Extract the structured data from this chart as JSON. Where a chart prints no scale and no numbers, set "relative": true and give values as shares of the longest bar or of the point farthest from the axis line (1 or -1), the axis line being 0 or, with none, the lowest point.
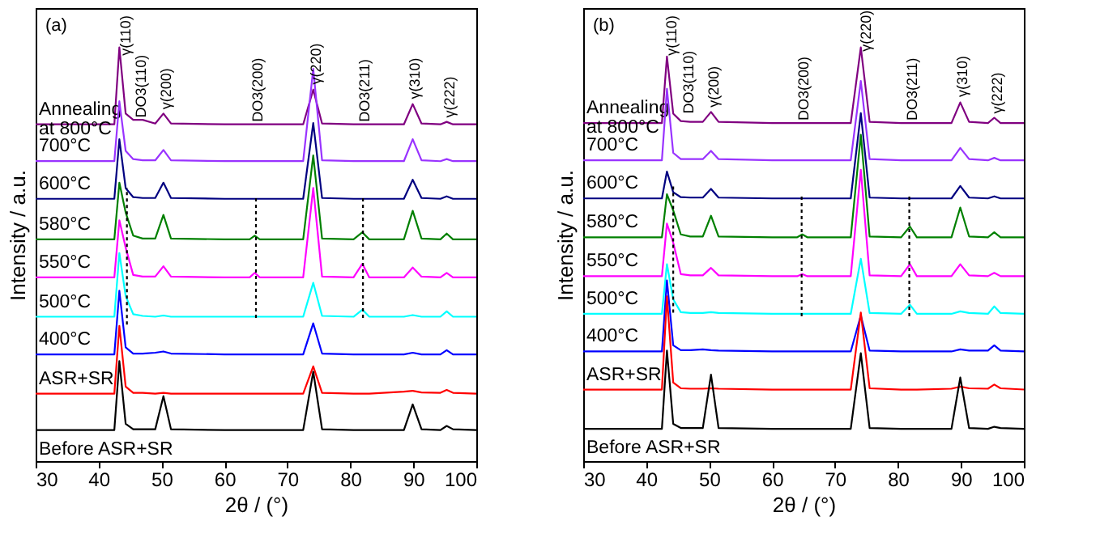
{
  "chart_data": [
    {
      "type": "line",
      "relative": true,
      "xlabel": "2θ / (°)",
      "ylabel": "Intensity / a.u.",
      "xlim": [
        30,
        100
      ],
      "xticks": [
        30,
        40,
        50,
        60,
        70,
        80,
        90,
        100
      ],
      "grid": false,
      "legend": false,
      "tick_labels": "x",
      "marker": "none",
      "x": [
        30,
        42.5,
        43.3,
        44.3,
        45.5,
        47,
        49,
        50.3,
        51.5,
        60,
        64,
        64.8,
        65.6,
        72.5,
        74.1,
        75.5,
        80.5,
        81.9,
        83,
        88.5,
        89.9,
        91.3,
        94.3,
        95.3,
        96.3,
        100
      ],
      "series": [
        {
          "name": "Annealing at 800°C",
          "color": "#800080",
          "line_style": "solid",
          "values": [
            0.814,
            0.814,
            1.0,
            0.84,
            0.825,
            0.825,
            0.816,
            0.84,
            0.816,
            0.814,
            0.814,
            0.814,
            0.814,
            0.814,
            0.898,
            0.816,
            0.814,
            0.814,
            0.814,
            0.814,
            0.863,
            0.816,
            0.814,
            0.82,
            0.814,
            0.814
          ]
        },
        {
          "name": "700°C",
          "color": "#9933ff",
          "line_style": "solid",
          "values": [
            0.725,
            0.725,
            0.87,
            0.75,
            0.73,
            0.727,
            0.727,
            0.752,
            0.727,
            0.725,
            0.725,
            0.725,
            0.725,
            0.725,
            0.948,
            0.727,
            0.725,
            0.725,
            0.725,
            0.725,
            0.778,
            0.727,
            0.725,
            0.73,
            0.725,
            0.725
          ]
        },
        {
          "name": "600°C",
          "color": "#000080",
          "line_style": "solid",
          "values": [
            0.634,
            0.634,
            0.778,
            0.66,
            0.638,
            0.636,
            0.636,
            0.673,
            0.636,
            0.634,
            0.634,
            0.634,
            0.634,
            0.634,
            0.817,
            0.636,
            0.634,
            0.634,
            0.634,
            0.634,
            0.68,
            0.636,
            0.634,
            0.64,
            0.634,
            0.634
          ]
        },
        {
          "name": "580°C",
          "color": "#008000",
          "line_style": "solid",
          "values": [
            0.536,
            0.536,
            0.673,
            0.601,
            0.545,
            0.538,
            0.538,
            0.595,
            0.538,
            0.536,
            0.536,
            0.545,
            0.536,
            0.536,
            0.739,
            0.538,
            0.536,
            0.553,
            0.536,
            0.536,
            0.605,
            0.538,
            0.536,
            0.55,
            0.536,
            0.536
          ]
        },
        {
          "name": "550°C",
          "color": "#ff00ff",
          "line_style": "solid",
          "values": [
            0.444,
            0.444,
            0.582,
            0.516,
            0.45,
            0.446,
            0.446,
            0.471,
            0.446,
            0.444,
            0.444,
            0.455,
            0.444,
            0.444,
            0.66,
            0.446,
            0.444,
            0.477,
            0.444,
            0.444,
            0.468,
            0.446,
            0.444,
            0.455,
            0.444,
            0.444
          ]
        },
        {
          "name": "500°C",
          "color": "#00ffff",
          "line_style": "solid",
          "values": [
            0.349,
            0.349,
            0.503,
            0.399,
            0.355,
            0.351,
            0.349,
            0.352,
            0.349,
            0.349,
            0.349,
            0.349,
            0.349,
            0.349,
            0.431,
            0.351,
            0.349,
            0.366,
            0.349,
            0.349,
            0.353,
            0.349,
            0.349,
            0.362,
            0.349,
            0.349
          ]
        },
        {
          "name": "400°C",
          "color": "#0000ff",
          "line_style": "solid",
          "values": [
            0.258,
            0.258,
            0.412,
            0.275,
            0.26,
            0.26,
            0.262,
            0.265,
            0.26,
            0.258,
            0.258,
            0.258,
            0.258,
            0.258,
            0.333,
            0.26,
            0.258,
            0.258,
            0.258,
            0.258,
            0.262,
            0.258,
            0.258,
            0.268,
            0.258,
            0.258
          ]
        },
        {
          "name": "ASR+SR",
          "color": "#ff0000",
          "line_style": "solid",
          "values": [
            0.163,
            0.163,
            0.327,
            0.18,
            0.165,
            0.165,
            0.163,
            0.165,
            0.163,
            0.163,
            0.163,
            0.163,
            0.163,
            0.163,
            0.229,
            0.165,
            0.163,
            0.163,
            0.163,
            0.168,
            0.17,
            0.166,
            0.165,
            0.172,
            0.165,
            0.163
          ]
        },
        {
          "name": "Before ASR+SR",
          "color": "#000000",
          "line_style": "solid",
          "values": [
            0.075,
            0.075,
            0.242,
            0.09,
            0.077,
            0.077,
            0.077,
            0.157,
            0.077,
            0.075,
            0.075,
            0.075,
            0.075,
            0.075,
            0.216,
            0.077,
            0.075,
            0.075,
            0.075,
            0.075,
            0.137,
            0.077,
            0.075,
            0.085,
            0.077,
            0.075
          ]
        },
        {
          "color": "#000000",
          "line_style": "dotted",
          "x": [
            44.5,
            44.5
          ],
          "values": [
            0.33,
            0.66
          ]
        },
        {
          "color": "#000000",
          "line_style": "dotted",
          "x": [
            65,
            65
          ],
          "values": [
            0.346,
            0.637
          ]
        },
        {
          "color": "#000000",
          "line_style": "dotted",
          "x": [
            82,
            82
          ],
          "values": [
            0.346,
            0.637
          ]
        }
      ],
      "annotations": [
        "(a)",
        {
          "text": "γ(110)",
          "x": 44,
          "y": 0.98
        },
        {
          "text": "DO3(110)",
          "x": 46.5,
          "y": 0.83
        },
        {
          "text": "γ(200)",
          "x": 50.5,
          "y": 0.85
        },
        {
          "text": "DO3(200)",
          "x": 65,
          "y": 0.82
        },
        {
          "text": "γ(220)",
          "x": 74.3,
          "y": 0.91
        },
        {
          "text": "DO3(211)",
          "x": 82,
          "y": 0.82
        },
        {
          "text": "γ(310)",
          "x": 90,
          "y": 0.875
        },
        {
          "text": "γ(222)",
          "x": 95.5,
          "y": 0.83
        }
      ]
    },
    {
      "type": "line",
      "relative": true,
      "xlabel": "2θ / (°)",
      "ylabel": "Intensity / a.u.",
      "xlim": [
        30,
        100
      ],
      "xticks": [
        30,
        40,
        50,
        60,
        70,
        80,
        90,
        100
      ],
      "grid": false,
      "legend": false,
      "tick_labels": "x",
      "marker": "none",
      "x": [
        30,
        42.5,
        43.3,
        44.3,
        45.5,
        47,
        49,
        50.3,
        51.5,
        60,
        64,
        64.8,
        65.6,
        72.5,
        74.1,
        75.5,
        80.5,
        81.9,
        83,
        88.5,
        89.9,
        91.3,
        94.3,
        95.3,
        96.3,
        100
      ],
      "series": [
        {
          "name": "Annealing at 800°C",
          "color": "#800080",
          "line_style": "solid",
          "values": [
            0.817,
            0.817,
            0.978,
            0.84,
            0.822,
            0.82,
            0.82,
            0.844,
            0.82,
            0.817,
            0.817,
            0.817,
            0.817,
            0.817,
            1.0,
            0.82,
            0.817,
            0.817,
            0.817,
            0.817,
            0.867,
            0.82,
            0.817,
            0.83,
            0.817,
            0.817
          ]
        },
        {
          "name": "700°C",
          "color": "#9933ff",
          "line_style": "solid",
          "values": [
            0.727,
            0.727,
            0.9,
            0.745,
            0.73,
            0.73,
            0.73,
            0.75,
            0.73,
            0.727,
            0.727,
            0.727,
            0.727,
            0.727,
            0.919,
            0.73,
            0.727,
            0.727,
            0.727,
            0.727,
            0.757,
            0.73,
            0.727,
            0.733,
            0.727,
            0.727
          ]
        },
        {
          "name": "600°C",
          "color": "#000080",
          "line_style": "solid",
          "values": [
            0.635,
            0.635,
            0.7,
            0.65,
            0.638,
            0.637,
            0.637,
            0.658,
            0.637,
            0.635,
            0.635,
            0.635,
            0.635,
            0.635,
            0.841,
            0.637,
            0.635,
            0.635,
            0.635,
            0.635,
            0.665,
            0.637,
            0.635,
            0.64,
            0.635,
            0.635
          ]
        },
        {
          "name": "580°C",
          "color": "#008000",
          "line_style": "solid",
          "values": [
            0.541,
            0.541,
            0.645,
            0.606,
            0.548,
            0.543,
            0.543,
            0.593,
            0.543,
            0.541,
            0.541,
            0.548,
            0.541,
            0.541,
            0.789,
            0.543,
            0.541,
            0.567,
            0.541,
            0.541,
            0.613,
            0.543,
            0.541,
            0.553,
            0.541,
            0.541
          ]
        },
        {
          "name": "550°C",
          "color": "#ff00ff",
          "line_style": "solid",
          "values": [
            0.447,
            0.447,
            0.574,
            0.528,
            0.452,
            0.449,
            0.449,
            0.467,
            0.449,
            0.447,
            0.447,
            0.452,
            0.447,
            0.447,
            0.704,
            0.449,
            0.447,
            0.476,
            0.447,
            0.447,
            0.476,
            0.449,
            0.447,
            0.455,
            0.447,
            0.447
          ]
        },
        {
          "name": "500°C",
          "color": "#00ffff",
          "line_style": "solid",
          "values": [
            0.356,
            0.356,
            0.476,
            0.391,
            0.36,
            0.358,
            0.358,
            0.36,
            0.358,
            0.356,
            0.356,
            0.356,
            0.356,
            0.356,
            0.489,
            0.358,
            0.356,
            0.378,
            0.356,
            0.356,
            0.362,
            0.358,
            0.356,
            0.374,
            0.358,
            0.356
          ]
        },
        {
          "name": "400°C",
          "color": "#0000ff",
          "line_style": "solid",
          "values": [
            0.265,
            0.265,
            0.437,
            0.28,
            0.268,
            0.268,
            0.27,
            0.268,
            0.267,
            0.265,
            0.265,
            0.265,
            0.265,
            0.265,
            0.352,
            0.267,
            0.265,
            0.265,
            0.265,
            0.265,
            0.27,
            0.267,
            0.267,
            0.28,
            0.267,
            0.265
          ]
        },
        {
          "name": "ASR+SR",
          "color": "#ff0000",
          "line_style": "solid",
          "values": [
            0.173,
            0.173,
            0.398,
            0.19,
            0.176,
            0.175,
            0.175,
            0.176,
            0.175,
            0.173,
            0.173,
            0.173,
            0.173,
            0.173,
            0.359,
            0.176,
            0.173,
            0.173,
            0.173,
            0.175,
            0.18,
            0.176,
            0.175,
            0.185,
            0.176,
            0.173
          ]
        },
        {
          "name": "Before ASR+SR",
          "color": "#000000",
          "line_style": "solid",
          "values": [
            0.078,
            0.078,
            0.267,
            0.09,
            0.08,
            0.08,
            0.08,
            0.209,
            0.08,
            0.078,
            0.078,
            0.078,
            0.078,
            0.078,
            0.261,
            0.08,
            0.078,
            0.078,
            0.078,
            0.078,
            0.202,
            0.08,
            0.078,
            0.083,
            0.08,
            0.078
          ]
        },
        {
          "color": "#000000",
          "line_style": "dotted",
          "x": [
            44.3,
            44.3
          ],
          "values": [
            0.359,
            0.665
          ]
        },
        {
          "color": "#000000",
          "line_style": "dotted",
          "x": [
            64.7,
            64.7
          ],
          "values": [
            0.35,
            0.64
          ]
        },
        {
          "color": "#000000",
          "line_style": "dotted",
          "x": [
            81.8,
            81.8
          ],
          "values": [
            0.35,
            0.64
          ]
        }
      ],
      "annotations": [
        "(b)",
        {
          "text": "γ(110)",
          "x": 43.8,
          "y": 0.98
        },
        {
          "text": "DO3(110)",
          "x": 46.5,
          "y": 0.84
        },
        {
          "text": "γ(200)",
          "x": 50.5,
          "y": 0.855
        },
        {
          "text": "DO3(200)",
          "x": 64.7,
          "y": 0.823
        },
        {
          "text": "γ(220)",
          "x": 74.6,
          "y": 0.99
        },
        {
          "text": "DO3(211)",
          "x": 82,
          "y": 0.823
        },
        {
          "text": "γ(310)",
          "x": 90,
          "y": 0.88
        },
        {
          "text": "γ(222)",
          "x": 95.5,
          "y": 0.84
        }
      ]
    }
  ]
}
